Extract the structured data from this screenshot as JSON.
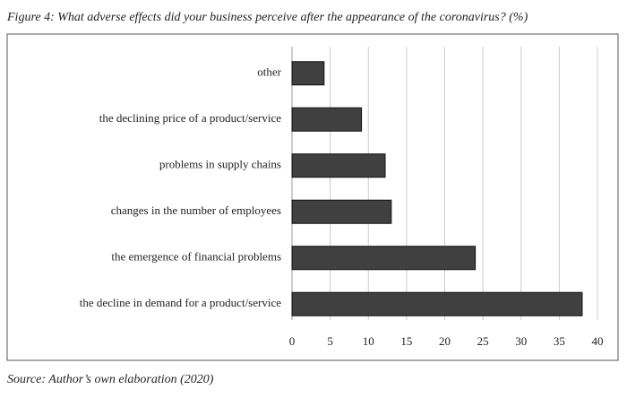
{
  "chart_data": {
    "type": "bar",
    "orientation": "horizontal",
    "title": "Figure 4: What adverse effects did your business perceive after the appearance of the coronavirus? (%)",
    "source": "Source: Author’s own elaboration (2020)",
    "categories": [
      "other",
      "the declining price of a product/service",
      "problems in supply chains",
      "changes in the number of employees",
      "the emergence of financial problems",
      "the decline in demand for a product/service"
    ],
    "values": [
      4.2,
      9.1,
      12.2,
      13,
      24,
      38
    ],
    "color": "#404040",
    "xlim": [
      0,
      40
    ],
    "xticks": [
      0,
      5,
      10,
      15,
      20,
      25,
      30,
      35,
      40
    ],
    "grid": true
  }
}
